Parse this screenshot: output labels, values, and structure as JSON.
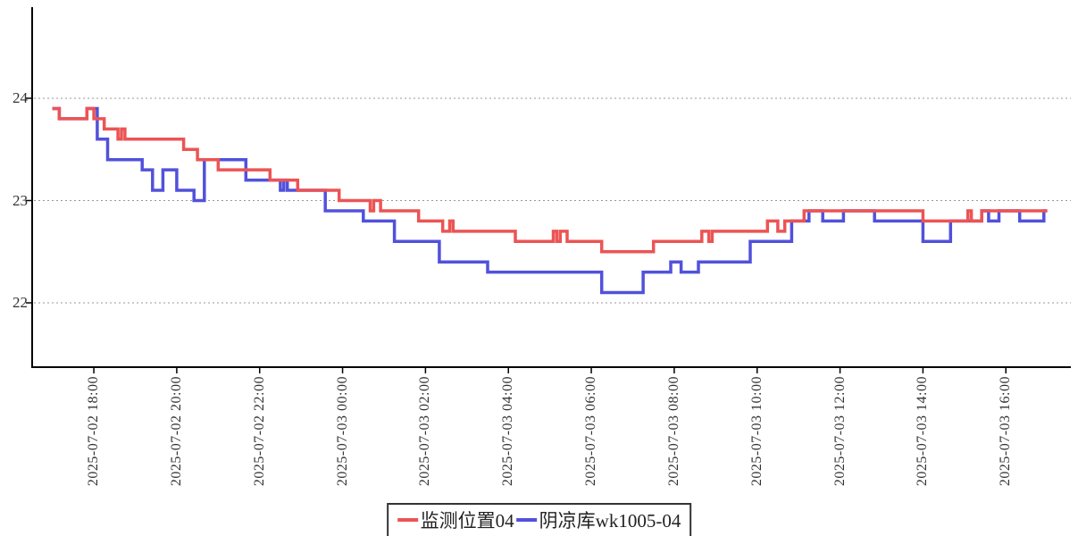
{
  "chart_data": {
    "type": "line",
    "step": "after",
    "title": "",
    "x_unit": "minutes since 2025-07-02 17:00",
    "x_tick_labels": [
      "2025-07-02 18:00",
      "2025-07-02 20:00",
      "2025-07-02 22:00",
      "2025-07-03 00:00",
      "2025-07-03 02:00",
      "2025-07-03 04:00",
      "2025-07-03 06:00",
      "2025-07-03 08:00",
      "2025-07-03 10:00",
      "2025-07-03 12:00",
      "2025-07-03 14:00",
      "2025-07-03 16:00"
    ],
    "x_tick_minutes": [
      60,
      180,
      300,
      420,
      540,
      660,
      780,
      900,
      1020,
      1140,
      1260,
      1380
    ],
    "xlim_minutes": [
      0,
      1440
    ],
    "y_tick_labels": [
      "24",
      "23",
      "22"
    ],
    "y_ticks": [
      24,
      23,
      22
    ],
    "ylim": [
      21.4,
      24.9
    ],
    "grid": "dotted-horizontal",
    "legend_position": "bottom-center",
    "series": [
      {
        "name": "监测位置04",
        "color": "#ec5454",
        "points": [
          [
            0,
            23.9
          ],
          [
            10,
            23.8
          ],
          [
            50,
            23.9
          ],
          [
            60,
            23.8
          ],
          [
            75,
            23.7
          ],
          [
            95,
            23.6
          ],
          [
            100,
            23.7
          ],
          [
            105,
            23.6
          ],
          [
            190,
            23.5
          ],
          [
            210,
            23.4
          ],
          [
            240,
            23.3
          ],
          [
            315,
            23.2
          ],
          [
            355,
            23.1
          ],
          [
            415,
            23.0
          ],
          [
            460,
            22.9
          ],
          [
            465,
            23.0
          ],
          [
            475,
            22.9
          ],
          [
            530,
            22.8
          ],
          [
            565,
            22.7
          ],
          [
            575,
            22.8
          ],
          [
            580,
            22.7
          ],
          [
            670,
            22.6
          ],
          [
            725,
            22.7
          ],
          [
            730,
            22.6
          ],
          [
            735,
            22.7
          ],
          [
            745,
            22.6
          ],
          [
            795,
            22.5
          ],
          [
            870,
            22.6
          ],
          [
            940,
            22.7
          ],
          [
            950,
            22.6
          ],
          [
            955,
            22.7
          ],
          [
            1035,
            22.8
          ],
          [
            1050,
            22.7
          ],
          [
            1060,
            22.8
          ],
          [
            1088,
            22.9
          ],
          [
            1260,
            22.8
          ],
          [
            1325,
            22.9
          ],
          [
            1330,
            22.8
          ],
          [
            1345,
            22.9
          ],
          [
            1440,
            22.9
          ]
        ]
      },
      {
        "name": "阴凉库wk1005-04",
        "color": "#5151dc",
        "points": [
          [
            0,
            23.9
          ],
          [
            10,
            23.8
          ],
          [
            50,
            23.9
          ],
          [
            65,
            23.6
          ],
          [
            80,
            23.4
          ],
          [
            130,
            23.3
          ],
          [
            145,
            23.1
          ],
          [
            160,
            23.3
          ],
          [
            180,
            23.1
          ],
          [
            205,
            23.0
          ],
          [
            220,
            23.4
          ],
          [
            280,
            23.2
          ],
          [
            330,
            23.1
          ],
          [
            335,
            23.2
          ],
          [
            340,
            23.1
          ],
          [
            395,
            22.9
          ],
          [
            450,
            22.8
          ],
          [
            495,
            22.6
          ],
          [
            560,
            22.4
          ],
          [
            630,
            22.3
          ],
          [
            795,
            22.1
          ],
          [
            855,
            22.3
          ],
          [
            895,
            22.4
          ],
          [
            910,
            22.3
          ],
          [
            935,
            22.4
          ],
          [
            1010,
            22.6
          ],
          [
            1070,
            22.8
          ],
          [
            1095,
            22.9
          ],
          [
            1115,
            22.8
          ],
          [
            1145,
            22.9
          ],
          [
            1190,
            22.8
          ],
          [
            1260,
            22.6
          ],
          [
            1300,
            22.8
          ],
          [
            1345,
            22.9
          ],
          [
            1355,
            22.8
          ],
          [
            1370,
            22.9
          ],
          [
            1400,
            22.8
          ],
          [
            1435,
            22.9
          ],
          [
            1440,
            22.9
          ]
        ]
      }
    ]
  },
  "legend": {
    "items": [
      {
        "label": "监测位置04",
        "color": "#ec5454"
      },
      {
        "label": "阴凉库wk1005-04",
        "color": "#5151dc"
      }
    ]
  },
  "colors": {
    "axis": "#000000",
    "grid": "#999999",
    "tick_text": "#333333",
    "background": "#ffffff"
  }
}
